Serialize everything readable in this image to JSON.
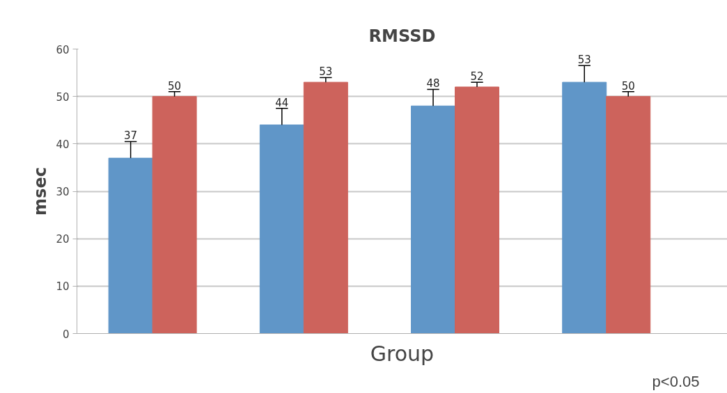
{
  "chart_data": {
    "type": "bar",
    "title": "RMSSD",
    "xlabel": "Group",
    "ylabel": "msec",
    "categories": [
      null,
      null,
      null,
      null
    ],
    "series": [
      {
        "color": "#6096c8",
        "values": [
          37,
          44,
          48,
          53
        ],
        "errors": [
          [
            37,
            40.5
          ],
          [
            44,
            47.5
          ],
          [
            48,
            51.5
          ],
          [
            53,
            56.5
          ]
        ]
      },
      {
        "color": "#cd635c",
        "values": [
          50,
          53,
          52,
          50
        ],
        "errors": [
          [
            50,
            51
          ],
          [
            53,
            54
          ],
          [
            52,
            53
          ],
          [
            50,
            51
          ]
        ]
      }
    ],
    "ylim": [
      0,
      60
    ],
    "yticks": [
      0,
      10,
      20,
      30,
      40,
      50,
      60
    ],
    "grid": "y",
    "data_labels": true,
    "annotations": [
      "p<0.05"
    ]
  }
}
